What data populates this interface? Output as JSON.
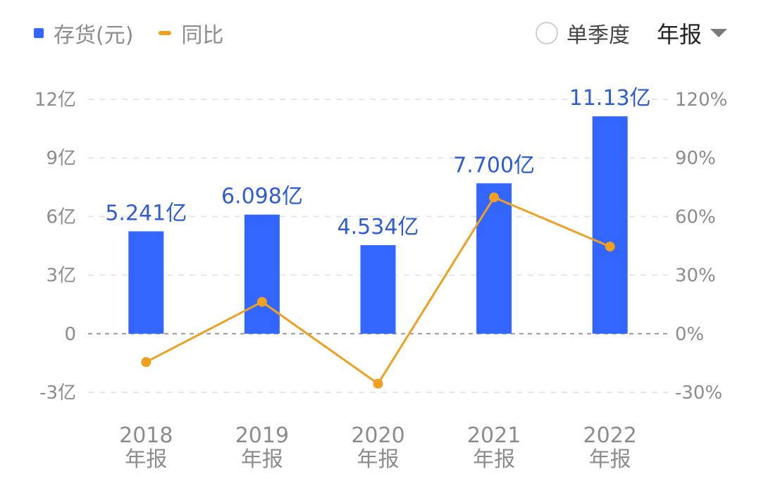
{
  "legend": [
    {
      "label": "存货(元)",
      "color": "#3366ff",
      "marker": "square"
    },
    {
      "label": "同比",
      "color": "#f0a020",
      "marker": "dash"
    }
  ],
  "controls": {
    "single_quarter_label": "单季度",
    "period_selected": "年报"
  },
  "chart_data": {
    "type": "bar",
    "categories": [
      "2018",
      "2019",
      "2020",
      "2021",
      "2022"
    ],
    "category_sublabel": "年报",
    "left_axis": {
      "ticks": [
        12,
        9,
        6,
        3,
        0,
        -3
      ],
      "tick_labels": [
        "12亿",
        "9亿",
        "6亿",
        "3亿",
        "0",
        "-3亿"
      ],
      "ylim": [
        -3,
        12
      ],
      "unit": "亿"
    },
    "right_axis": {
      "ticks": [
        120,
        90,
        60,
        30,
        0,
        -30
      ],
      "tick_labels": [
        "120%",
        "90%",
        "60%",
        "30%",
        "0%",
        "-30%"
      ],
      "ylim": [
        -30,
        120
      ],
      "unit": "%"
    },
    "series": [
      {
        "name": "存货(元)",
        "type": "bar",
        "axis": "left",
        "color": "#3366ff",
        "values": [
          5.241,
          6.098,
          4.534,
          7.7,
          11.13
        ],
        "labels": [
          "5.241亿",
          "6.098亿",
          "4.534亿",
          "7.700亿",
          "11.13亿"
        ]
      },
      {
        "name": "同比",
        "type": "line",
        "axis": "right",
        "color": "#f0a020",
        "values": [
          -14.5,
          16.3,
          -25.6,
          69.8,
          44.6
        ]
      }
    ],
    "grid": true
  }
}
